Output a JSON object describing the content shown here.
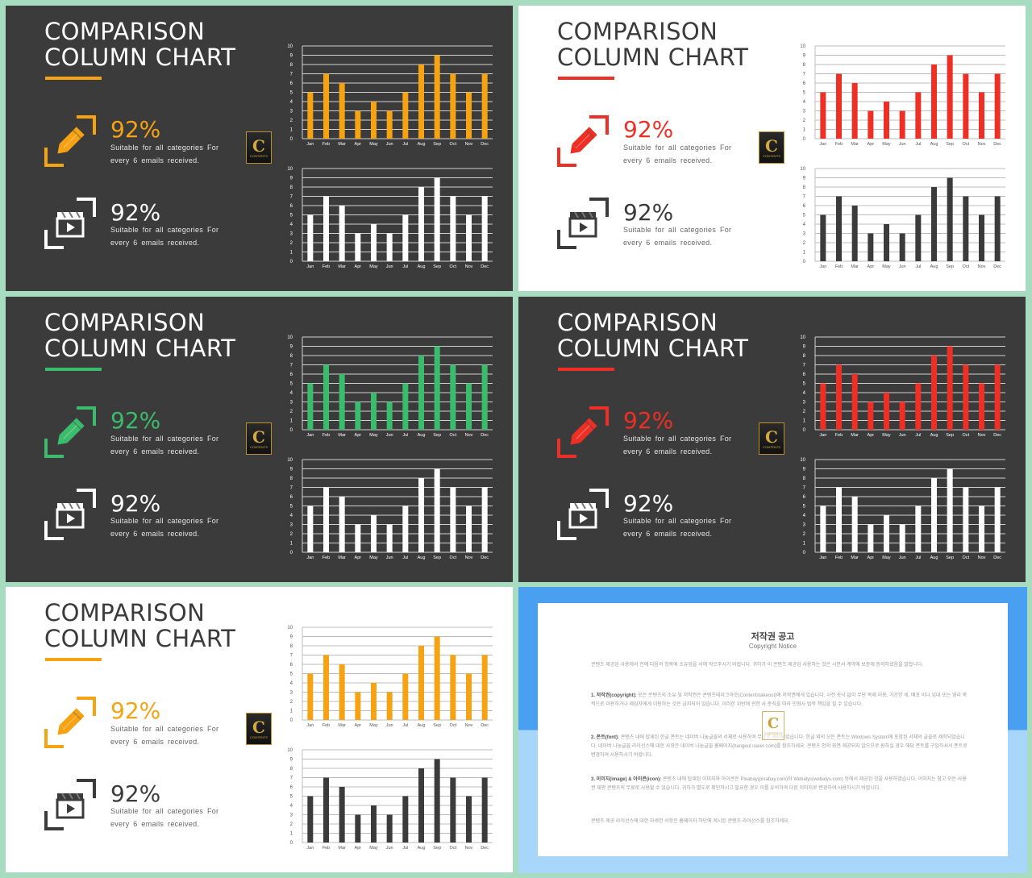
{
  "colors": {
    "dark_bg": "#3b3b3b",
    "light_bg": "#ffffff",
    "orange": "#f5a313",
    "red": "#ee2f25",
    "green": "#3bbb6c",
    "white": "#ffffff",
    "charcoal": "#3b3b3b",
    "frame_bg": "#a8dcc0",
    "notice_blue": "#4aa0f0"
  },
  "slides": [
    {
      "theme": "dark",
      "accent": "#f5a313",
      "top_bar_color": "#f5a313",
      "bottom_bar_color": "#ffffff",
      "pct_top_color": "#f5a313",
      "pct_bottom_color": "#ffffff",
      "icon_top_color": "#f5a313",
      "icon_bottom_color": "#ffffff",
      "title_line1": "COMPARISON",
      "title_line2": "COLUMN CHART",
      "stat_top_value": "92%",
      "stat_top_desc1": "Suitable for all categories For",
      "stat_top_desc2": "every 6 emails received.",
      "stat_bottom_value": "92%",
      "stat_bottom_desc1": "Suitable for all categories For",
      "stat_bottom_desc2": "every 6 emails received.",
      "logo_letter": "C",
      "logo_text": "CONTENTS"
    },
    {
      "theme": "light",
      "accent": "#ee2f25",
      "top_bar_color": "#ee2f25",
      "bottom_bar_color": "#3b3b3b",
      "pct_top_color": "#ee2f25",
      "pct_bottom_color": "#3b3b3b",
      "icon_top_color": "#ee2f25",
      "icon_bottom_color": "#3b3b3b",
      "title_line1": "COMPARISON",
      "title_line2": "COLUMN CHART",
      "stat_top_value": "92%",
      "stat_top_desc1": "Suitable for all categories For",
      "stat_top_desc2": "every 6 emails received.",
      "stat_bottom_value": "92%",
      "stat_bottom_desc1": "Suitable for all categories For",
      "stat_bottom_desc2": "every 6 emails received.",
      "logo_letter": "C",
      "logo_text": "CONTENTS"
    },
    {
      "theme": "dark",
      "accent": "#3bbb6c",
      "top_bar_color": "#3bbb6c",
      "bottom_bar_color": "#ffffff",
      "pct_top_color": "#3bbb6c",
      "pct_bottom_color": "#ffffff",
      "icon_top_color": "#3bbb6c",
      "icon_bottom_color": "#ffffff",
      "title_line1": "COMPARISON",
      "title_line2": "COLUMN CHART",
      "stat_top_value": "92%",
      "stat_top_desc1": "Suitable for all categories For",
      "stat_top_desc2": "every 6 emails received.",
      "stat_bottom_value": "92%",
      "stat_bottom_desc1": "Suitable for all categories For",
      "stat_bottom_desc2": "every 6 emails received.",
      "logo_letter": "C",
      "logo_text": "CONTENTS"
    },
    {
      "theme": "dark",
      "accent": "#ee2f25",
      "top_bar_color": "#ee2f25",
      "bottom_bar_color": "#ffffff",
      "pct_top_color": "#ee2f25",
      "pct_bottom_color": "#ffffff",
      "icon_top_color": "#ee2f25",
      "icon_bottom_color": "#ffffff",
      "title_line1": "COMPARISON",
      "title_line2": "COLUMN CHART",
      "stat_top_value": "92%",
      "stat_top_desc1": "Suitable for all categories For",
      "stat_top_desc2": "every 6 emails received.",
      "stat_bottom_value": "92%",
      "stat_bottom_desc1": "Suitable for all categories For",
      "stat_bottom_desc2": "every 6 emails received.",
      "logo_letter": "C",
      "logo_text": "CONTENTS"
    },
    {
      "theme": "light",
      "accent": "#f5a313",
      "top_bar_color": "#f5a313",
      "bottom_bar_color": "#3b3b3b",
      "pct_top_color": "#f5a313",
      "pct_bottom_color": "#3b3b3b",
      "icon_top_color": "#f5a313",
      "icon_bottom_color": "#3b3b3b",
      "title_line1": "COMPARISON",
      "title_line2": "COLUMN CHART",
      "stat_top_value": "92%",
      "stat_top_desc1": "Suitable for all categories For",
      "stat_top_desc2": "every 6 emails received.",
      "stat_bottom_value": "92%",
      "stat_bottom_desc1": "Suitable for all categories For",
      "stat_bottom_desc2": "every 6 emails received.",
      "logo_letter": "C",
      "logo_text": "CONTENTS"
    }
  ],
  "icons": {
    "top": "pencil-icon",
    "bottom": "video-clapper-icon"
  },
  "chart_data": [
    {
      "type": "bar",
      "categories": [
        "Jan",
        "Feb",
        "Mar",
        "Apr",
        "May",
        "Jun",
        "Jul",
        "Aug",
        "Sep",
        "Oct",
        "Nov",
        "Dec"
      ],
      "values": [
        5,
        7,
        6,
        3,
        4,
        3,
        5,
        8,
        9,
        7,
        5,
        7
      ],
      "ylim": [
        0,
        10
      ],
      "yticks": [
        "0",
        "1",
        "2",
        "3",
        "4",
        "5",
        "6",
        "7",
        "8",
        "9",
        "10"
      ],
      "grid": true,
      "title": "",
      "xlabel": "",
      "ylabel": ""
    },
    {
      "type": "bar",
      "categories": [
        "Jan",
        "Feb",
        "Mar",
        "Apr",
        "May",
        "Jun",
        "Jul",
        "Aug",
        "Sep",
        "Oct",
        "Nov",
        "Dec"
      ],
      "values": [
        5,
        7,
        6,
        3,
        4,
        3,
        5,
        8,
        9,
        7,
        5,
        7
      ],
      "ylim": [
        0,
        10
      ],
      "yticks": [
        "0",
        "1",
        "2",
        "3",
        "4",
        "5",
        "6",
        "7",
        "8",
        "9",
        "10"
      ],
      "grid": true,
      "title": "",
      "xlabel": "",
      "ylabel": ""
    }
  ],
  "notice": {
    "title": "저작권 공고",
    "subtitle": "Copyright Notice",
    "para_intro": "콘텐츠 제공업 사용에서 전에 다음의 항목에 소유업을 서에 작으주시기 바랍니다. 귀하가 이 콘텐츠 제공업 사용하는 것은 시분서 계약에 보증에 동의하셨음을 말합니다.",
    "para1_head": "1. 저작권(copyright):",
    "para1_body": " 모든 콘텐츠의 소유 및 저작권은 콘텐츠테이크아웃(Contentstakeout)에 저작권에게 있습니다. 시전 승낙 없이 무단 복제 이용, 기간한 세, 배포 이나 임대 또는 영리 목적으로 이용하거나 제삼자에게 이용하는 것은 금지되어 있습니다. 이러한 위반에 관한 사 준칙을 따라 민형사 법적 책임을 질 수 있습니다.",
    "para2_head": "2. 폰트(font):",
    "para2_body": " 콘텐츠 내에 탑재된 한글 폰트는 네이버 나눔글꼴의 서체로 사용하여 무료로 제작되었습니다. 한글 외의 모든 폰트는 Windows System에 포함된 서체의 글꼴로 제작되었습니다. 네이버 나눔글꼴 라이선스에 대한 사항은 네이버 나눔글꼴 홈페이지(hangeul.naver.com)를 참조하세요. 콘텐츠 안의 화면 제공되지 않으므로 원하실 경우 해당 폰트를 구입하셔서 폰트로 변경하여 사용하시기 바랍니다.",
    "para3_head": "3. 이미지(image) & 아이콘(icon):",
    "para3_body": " 콘텐츠 내에 탑재된 이미지와 아이콘은 Pixabay(pixabay.com)와 Webalys(webalys.com) 등에서 제공된 것을 사용하였습니다. 이미지는 참고 모든 사용권 재판 콘텐츠의 무료로 사용할 수 있습니다. 귀하가 별도로 확인하시고 필요한 경우 이를 유의하여 다른 이미지로 변경하여 사용하시기 바랍니다.",
    "para_outro": "콘텐츠 제공 라이선스에 대한 자세한 사항은 홈페이지 하단에 게시된 콘텐츠 라이선스를 참조하세요."
  }
}
